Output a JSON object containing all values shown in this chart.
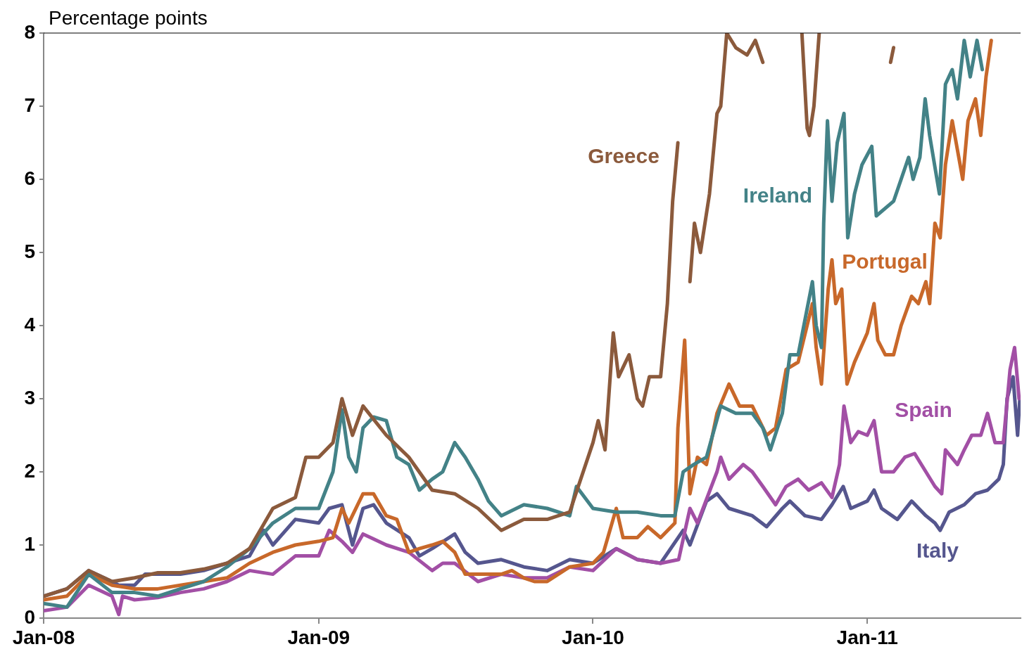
{
  "chart_data": {
    "type": "line",
    "ylabel": "Percentage points",
    "xlim": [
      "2008-01-01",
      "2011-07-24"
    ],
    "ylim": [
      0,
      8
    ],
    "yticks": [
      0,
      1,
      2,
      3,
      4,
      5,
      6,
      7,
      8
    ],
    "xticks": [
      {
        "value": "2008-01-01",
        "label": "Jan-08"
      },
      {
        "value": "2009-01-01",
        "label": "Jan-09"
      },
      {
        "value": "2010-01-01",
        "label": "Jan-10"
      },
      {
        "value": "2011-01-01",
        "label": "Jan-11"
      }
    ],
    "legend": false,
    "line_style": "solid",
    "series": [
      {
        "name": "Greece",
        "color": "#8b5a3c",
        "x": [
          "2008-01-01",
          "2008-02-01",
          "2008-03-01",
          "2008-04-01",
          "2008-05-01",
          "2008-06-01",
          "2008-07-01",
          "2008-08-01",
          "2008-09-01",
          "2008-10-01",
          "2008-11-01",
          "2008-12-01",
          "2008-12-15",
          "2009-01-01",
          "2009-01-20",
          "2009-02-01",
          "2009-02-15",
          "2009-03-01",
          "2009-04-01",
          "2009-05-01",
          "2009-06-01",
          "2009-07-01",
          "2009-08-01",
          "2009-09-01",
          "2009-10-01",
          "2009-11-01",
          "2009-12-01",
          "2010-01-01",
          "2010-01-08",
          "2010-01-17",
          "2010-01-28",
          "2010-02-04",
          "2010-02-18",
          "2010-03-01",
          "2010-03-08",
          "2010-03-17",
          "2010-04-01",
          "2010-04-10",
          "2010-04-17",
          "2010-04-24",
          "2010-04-27",
          "2010-05-10",
          "2010-05-16",
          "2010-05-24",
          "2010-06-05",
          "2010-06-15",
          "2010-06-20",
          "2010-06-28",
          "2010-07-10",
          "2010-07-25",
          "2010-08-05",
          "2010-08-15",
          "2010-08-25",
          "2010-10-06",
          "2010-10-13",
          "2010-10-16",
          "2010-10-22",
          "2010-10-29",
          "2010-11-05",
          "2011-02-01",
          "2011-02-05"
        ],
        "values": [
          0.3,
          0.4,
          0.65,
          0.5,
          0.55,
          0.62,
          0.62,
          0.67,
          0.75,
          0.95,
          1.5,
          1.65,
          2.2,
          2.2,
          2.4,
          3.0,
          2.5,
          2.9,
          2.5,
          2.2,
          1.75,
          1.7,
          1.5,
          1.2,
          1.35,
          1.35,
          1.45,
          2.4,
          2.7,
          2.3,
          3.9,
          3.3,
          3.6,
          3.0,
          2.9,
          3.3,
          3.3,
          4.3,
          5.7,
          6.5,
          null,
          4.6,
          5.4,
          5.0,
          5.8,
          6.9,
          7.0,
          8.0,
          7.8,
          7.7,
          7.9,
          7.6,
          null,
          8.0,
          6.7,
          6.6,
          7.0,
          8.0,
          null,
          7.6,
          7.8
        ]
      },
      {
        "name": "Ireland",
        "color": "#438287",
        "x": [
          "2008-01-01",
          "2008-02-01",
          "2008-03-01",
          "2008-04-01",
          "2008-05-01",
          "2008-06-01",
          "2008-07-01",
          "2008-08-01",
          "2008-09-01",
          "2008-10-01",
          "2008-11-01",
          "2008-12-01",
          "2009-01-01",
          "2009-01-20",
          "2009-02-01",
          "2009-02-10",
          "2009-02-20",
          "2009-03-01",
          "2009-03-15",
          "2009-04-01",
          "2009-04-15",
          "2009-05-01",
          "2009-05-15",
          "2009-06-01",
          "2009-06-15",
          "2009-07-01",
          "2009-07-15",
          "2009-08-01",
          "2009-08-15",
          "2009-09-01",
          "2009-10-01",
          "2009-11-01",
          "2009-12-01",
          "2009-12-10",
          "2010-01-01",
          "2010-02-01",
          "2010-03-01",
          "2010-04-01",
          "2010-04-20",
          "2010-05-01",
          "2010-05-15",
          "2010-06-01",
          "2010-06-20",
          "2010-07-10",
          "2010-08-01",
          "2010-08-15",
          "2010-08-25",
          "2010-09-10",
          "2010-09-20",
          "2010-10-01",
          "2010-10-20",
          "2010-10-25",
          "2010-11-01",
          "2010-11-04",
          "2010-11-09",
          "2010-11-15",
          "2010-11-22",
          "2010-12-01",
          "2010-12-06",
          "2010-12-15",
          "2010-12-25",
          "2011-01-07",
          "2011-01-13",
          "2011-02-05",
          "2011-02-25",
          "2011-03-03",
          "2011-03-12",
          "2011-03-19",
          "2011-03-25",
          "2011-04-07",
          "2011-04-15",
          "2011-04-24",
          "2011-05-01",
          "2011-05-10",
          "2011-05-18",
          "2011-05-27",
          "2011-06-03"
        ],
        "values": [
          0.2,
          0.15,
          0.6,
          0.35,
          0.35,
          0.3,
          0.4,
          0.5,
          0.7,
          0.95,
          1.3,
          1.5,
          1.5,
          2.0,
          2.85,
          2.2,
          2.0,
          2.6,
          2.75,
          2.7,
          2.2,
          2.1,
          1.75,
          1.9,
          2.0,
          2.4,
          2.2,
          1.9,
          1.6,
          1.4,
          1.55,
          1.5,
          1.4,
          1.8,
          1.5,
          1.45,
          1.45,
          1.4,
          1.4,
          2.0,
          2.1,
          2.2,
          2.9,
          2.8,
          2.8,
          2.6,
          2.3,
          2.8,
          3.6,
          3.6,
          4.6,
          4.0,
          3.7,
          5.4,
          6.8,
          5.7,
          6.5,
          6.9,
          5.2,
          5.8,
          6.2,
          6.45,
          5.5,
          5.7,
          6.3,
          6.0,
          6.3,
          7.1,
          6.6,
          5.8,
          7.3,
          7.5,
          7.1,
          7.9,
          7.4,
          7.9,
          7.5
        ]
      },
      {
        "name": "Portugal",
        "color": "#c8682a",
        "x": [
          "2008-01-01",
          "2008-02-01",
          "2008-03-01",
          "2008-04-01",
          "2008-05-01",
          "2008-06-01",
          "2008-07-01",
          "2008-08-01",
          "2008-09-01",
          "2008-10-01",
          "2008-11-01",
          "2008-12-01",
          "2009-01-01",
          "2009-01-20",
          "2009-02-01",
          "2009-02-10",
          "2009-03-01",
          "2009-03-15",
          "2009-04-01",
          "2009-04-15",
          "2009-05-01",
          "2009-05-15",
          "2009-06-01",
          "2009-06-15",
          "2009-07-01",
          "2009-07-15",
          "2009-08-01",
          "2009-08-15",
          "2009-09-01",
          "2009-09-15",
          "2009-10-01",
          "2009-10-15",
          "2009-11-01",
          "2009-12-01",
          "2010-01-01",
          "2010-01-15",
          "2010-02-01",
          "2010-02-10",
          "2010-03-01",
          "2010-03-15",
          "2010-04-01",
          "2010-04-20",
          "2010-04-24",
          "2010-05-03",
          "2010-05-10",
          "2010-05-20",
          "2010-06-01",
          "2010-06-15",
          "2010-07-01",
          "2010-07-15",
          "2010-08-01",
          "2010-08-20",
          "2010-09-01",
          "2010-09-15",
          "2010-10-01",
          "2010-10-20",
          "2010-10-25",
          "2010-11-01",
          "2010-11-10",
          "2010-11-15",
          "2010-11-20",
          "2010-11-28",
          "2010-12-05",
          "2010-12-15",
          "2011-01-01",
          "2011-01-10",
          "2011-01-15",
          "2011-01-25",
          "2011-02-05",
          "2011-02-15",
          "2011-03-01",
          "2011-03-10",
          "2011-03-20",
          "2011-03-25",
          "2011-04-01",
          "2011-04-08",
          "2011-04-15",
          "2011-04-24",
          "2011-05-01",
          "2011-05-08",
          "2011-05-15",
          "2011-05-25",
          "2011-06-01",
          "2011-06-08",
          "2011-06-15"
        ],
        "values": [
          0.25,
          0.3,
          0.6,
          0.45,
          0.4,
          0.4,
          0.45,
          0.5,
          0.55,
          0.75,
          0.9,
          1.0,
          1.05,
          1.1,
          1.5,
          1.3,
          1.7,
          1.7,
          1.4,
          1.35,
          0.9,
          0.95,
          1.0,
          1.05,
          0.9,
          0.6,
          0.6,
          0.6,
          0.6,
          0.65,
          0.55,
          0.5,
          0.5,
          0.7,
          0.75,
          0.9,
          1.5,
          1.1,
          1.1,
          1.25,
          1.1,
          1.3,
          2.6,
          3.8,
          1.7,
          2.2,
          2.1,
          2.8,
          3.2,
          2.9,
          2.9,
          2.5,
          2.6,
          3.4,
          3.5,
          4.3,
          3.7,
          3.2,
          4.5,
          4.9,
          4.3,
          4.5,
          3.2,
          3.5,
          3.9,
          4.3,
          3.8,
          3.6,
          3.6,
          4.0,
          4.4,
          4.3,
          4.6,
          4.3,
          5.4,
          5.2,
          6.2,
          6.8,
          6.4,
          6.0,
          6.8,
          7.1,
          6.6,
          7.4,
          7.9
        ]
      },
      {
        "name": "Spain",
        "color": "#a24fa5",
        "x": [
          "2008-01-01",
          "2008-02-01",
          "2008-03-01",
          "2008-04-01",
          "2008-04-10",
          "2008-04-15",
          "2008-05-01",
          "2008-06-01",
          "2008-07-01",
          "2008-08-01",
          "2008-09-01",
          "2008-10-01",
          "2008-11-01",
          "2008-12-01",
          "2009-01-01",
          "2009-01-15",
          "2009-02-01",
          "2009-02-15",
          "2009-03-01",
          "2009-04-01",
          "2009-05-01",
          "2009-06-01",
          "2009-06-15",
          "2009-07-01",
          "2009-08-01",
          "2009-09-01",
          "2009-10-01",
          "2009-11-01",
          "2009-12-01",
          "2010-01-01",
          "2010-02-01",
          "2010-03-01",
          "2010-04-01",
          "2010-04-25",
          "2010-05-10",
          "2010-05-20",
          "2010-06-15",
          "2010-06-20",
          "2010-07-01",
          "2010-07-20",
          "2010-08-01",
          "2010-08-15",
          "2010-09-01",
          "2010-09-15",
          "2010-10-01",
          "2010-10-15",
          "2010-11-01",
          "2010-11-15",
          "2010-11-25",
          "2010-12-01",
          "2010-12-10",
          "2010-12-20",
          "2011-01-01",
          "2011-01-10",
          "2011-01-20",
          "2011-02-05",
          "2011-02-20",
          "2011-03-05",
          "2011-03-20",
          "2011-04-01",
          "2011-04-10",
          "2011-04-15",
          "2011-05-01",
          "2011-05-10",
          "2011-05-20",
          "2011-06-01",
          "2011-06-10",
          "2011-06-20",
          "2011-07-01",
          "2011-07-10",
          "2011-07-16",
          "2011-07-22"
        ],
        "values": [
          0.1,
          0.15,
          0.45,
          0.3,
          0.05,
          0.3,
          0.25,
          0.28,
          0.35,
          0.4,
          0.5,
          0.65,
          0.6,
          0.85,
          0.85,
          1.2,
          1.05,
          0.9,
          1.15,
          1.0,
          0.9,
          0.65,
          0.75,
          0.75,
          0.5,
          0.6,
          0.55,
          0.55,
          0.7,
          0.65,
          0.95,
          0.8,
          0.75,
          0.8,
          1.5,
          1.3,
          2.0,
          2.2,
          1.9,
          2.1,
          2.0,
          1.8,
          1.55,
          1.8,
          1.9,
          1.75,
          1.85,
          1.65,
          2.1,
          2.9,
          2.4,
          2.55,
          2.5,
          2.7,
          2.0,
          2.0,
          2.2,
          2.25,
          2.0,
          1.8,
          1.7,
          2.3,
          2.1,
          2.3,
          2.5,
          2.5,
          2.8,
          2.4,
          2.4,
          3.4,
          3.7,
          3.0
        ]
      },
      {
        "name": "Italy",
        "color": "#55568e",
        "x": [
          "2008-01-01",
          "2008-02-01",
          "2008-03-01",
          "2008-04-01",
          "2008-04-10",
          "2008-05-01",
          "2008-05-15",
          "2008-06-01",
          "2008-07-01",
          "2008-08-01",
          "2008-09-01",
          "2008-10-01",
          "2008-10-20",
          "2008-11-01",
          "2008-12-01",
          "2009-01-01",
          "2009-01-15",
          "2009-02-01",
          "2009-02-15",
          "2009-03-01",
          "2009-03-15",
          "2009-04-01",
          "2009-05-01",
          "2009-05-15",
          "2009-06-01",
          "2009-07-01",
          "2009-07-15",
          "2009-08-01",
          "2009-09-01",
          "2009-10-01",
          "2009-11-01",
          "2009-12-01",
          "2010-01-01",
          "2010-02-01",
          "2010-03-01",
          "2010-04-01",
          "2010-05-01",
          "2010-05-10",
          "2010-06-01",
          "2010-06-15",
          "2010-07-01",
          "2010-08-01",
          "2010-08-20",
          "2010-09-10",
          "2010-09-20",
          "2010-10-10",
          "2010-11-01",
          "2010-11-15",
          "2010-11-30",
          "2010-12-10",
          "2011-01-01",
          "2011-01-10",
          "2011-01-20",
          "2011-02-10",
          "2011-03-01",
          "2011-03-20",
          "2011-04-01",
          "2011-04-08",
          "2011-04-20",
          "2011-05-10",
          "2011-05-25",
          "2011-06-10",
          "2011-06-25",
          "2011-07-01",
          "2011-07-06",
          "2011-07-14",
          "2011-07-20",
          "2011-07-23"
        ],
        "values": [
          0.3,
          0.4,
          0.65,
          0.5,
          0.45,
          0.45,
          0.6,
          0.6,
          0.6,
          0.65,
          0.75,
          0.85,
          1.2,
          1.0,
          1.35,
          1.3,
          1.5,
          1.55,
          1.0,
          1.5,
          1.55,
          1.3,
          1.1,
          0.85,
          0.95,
          1.15,
          0.9,
          0.75,
          0.8,
          0.7,
          0.65,
          0.8,
          0.75,
          0.95,
          0.8,
          0.75,
          1.2,
          1.0,
          1.6,
          1.7,
          1.5,
          1.4,
          1.25,
          1.5,
          1.6,
          1.4,
          1.35,
          1.55,
          1.8,
          1.5,
          1.6,
          1.75,
          1.5,
          1.35,
          1.6,
          1.4,
          1.3,
          1.2,
          1.45,
          1.55,
          1.7,
          1.75,
          1.9,
          2.1,
          3.0,
          3.3,
          2.5,
          3.0
        ]
      }
    ]
  }
}
